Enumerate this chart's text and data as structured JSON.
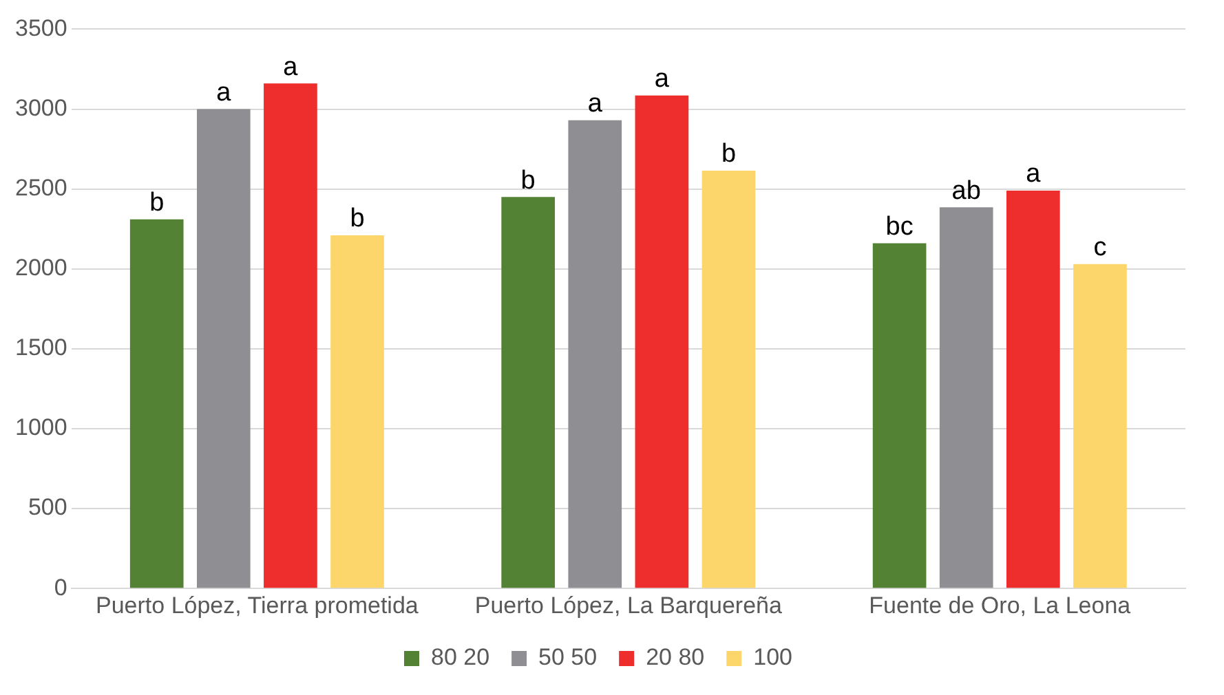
{
  "chart_data": {
    "type": "bar",
    "categories": [
      "Puerto López, Tierra prometida",
      "Puerto López, La Barquereña",
      "Fuente de Oro, La Leona"
    ],
    "series": [
      {
        "name": "80 20",
        "color": "#548235",
        "values": [
          2310,
          2450,
          2160
        ],
        "value_labels": [
          "b",
          "b",
          "bc"
        ]
      },
      {
        "name": "50 50",
        "color": "#8f8f93",
        "values": [
          3000,
          2930,
          2385
        ],
        "value_labels": [
          "a",
          "a",
          "ab"
        ]
      },
      {
        "name": "20 80",
        "color": "#ee2d2d",
        "values": [
          3160,
          3085,
          2490
        ],
        "value_labels": [
          "a",
          "a",
          "a"
        ]
      },
      {
        "name": "100",
        "color": "#fdd66b",
        "values": [
          2210,
          2615,
          2030
        ],
        "value_labels": [
          "b",
          "b",
          "c"
        ]
      }
    ],
    "ylim": [
      0,
      3500
    ],
    "yticks": [
      0,
      500,
      1000,
      1500,
      2000,
      2500,
      3000,
      3500
    ],
    "grid": "y",
    "legend": "bottom"
  }
}
